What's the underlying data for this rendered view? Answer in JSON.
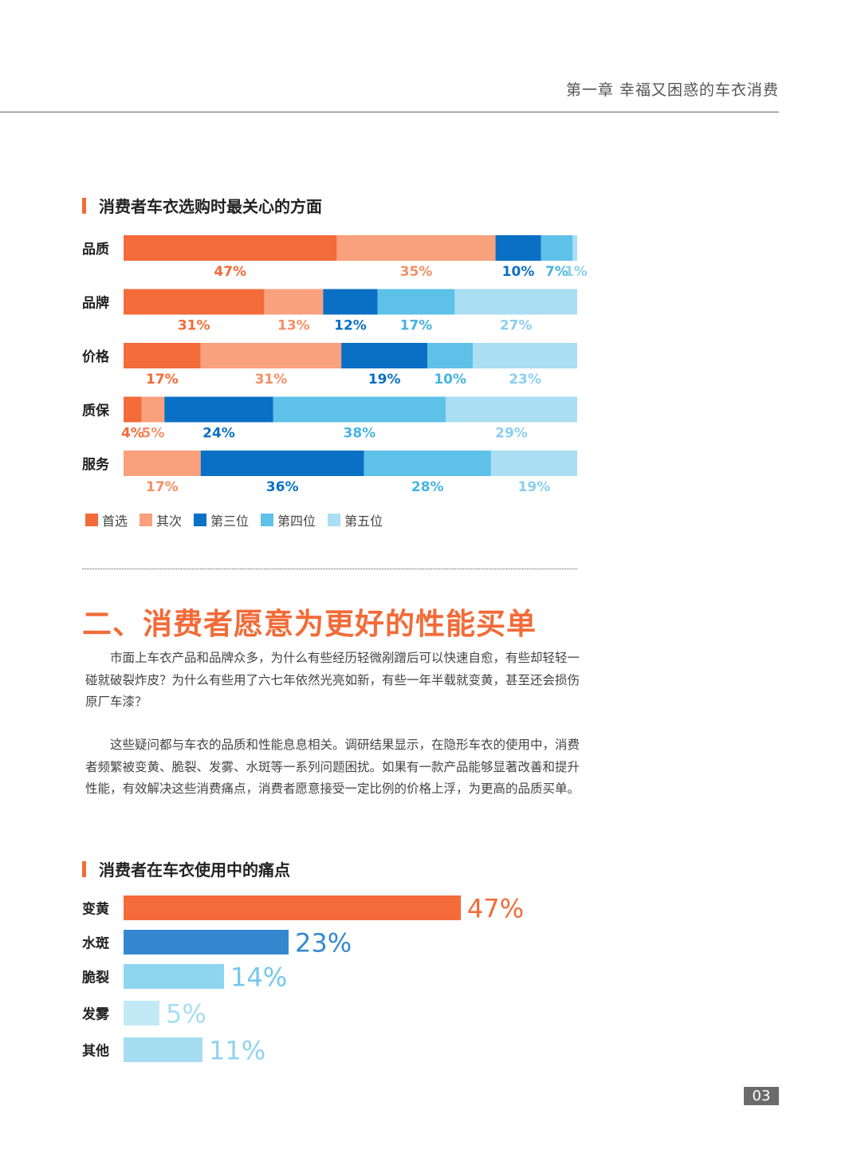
{
  "header": {
    "chapter_title": "第一章  幸福又困惑的车衣消费",
    "page_number": "03"
  },
  "section1": {
    "heading": "消费者车衣选购时最关心的方面"
  },
  "section2": {
    "heading": "二、消费者愿意为更好的性能买单",
    "paragraph1": "市面上车衣产品和品牌众多，为什么有些经历轻微剐蹭后可以快速自愈，有些却轻轻一碰就破裂炸皮？为什么有些用了六七年依然光亮如新，有些一年半载就变黄，甚至还会损伤原厂车漆？",
    "paragraph2": "这些疑问都与车衣的品质和性能息息相关。调研结果显示，在隐形车衣的使用中，消费者频繁被变黄、脆裂、发雾、水斑等一系列问题困扰。如果有一款产品能够显著改善和提升性能，有效解决这些消费痛点，消费者愿意接受一定比例的价格上浮，为更高的品质买单。"
  },
  "section3": {
    "heading": "消费者在车衣使用中的痛点"
  },
  "chart_data": [
    {
      "type": "bar",
      "stacked": true,
      "orientation": "horizontal",
      "unit": "%",
      "categories": [
        "品质",
        "品牌",
        "价格",
        "质保",
        "服务"
      ],
      "series": [
        {
          "name": "首选",
          "color": "#f26b38",
          "label_color": "#f26b38",
          "values": [
            47,
            31,
            17,
            4,
            0
          ]
        },
        {
          "name": "其次",
          "color": "#f9a07d",
          "label_color": "#f58f65",
          "values": [
            35,
            13,
            31,
            5,
            17
          ]
        },
        {
          "name": "第三位",
          "color": "#0a70c4",
          "label_color": "#0a70c4",
          "values": [
            10,
            12,
            19,
            24,
            36
          ]
        },
        {
          "name": "第四位",
          "color": "#5ec1e8",
          "label_color": "#47b4e0",
          "values": [
            7,
            17,
            10,
            38,
            28
          ]
        },
        {
          "name": "第五位",
          "color": "#a9def3",
          "label_color": "#8ccfee",
          "values": [
            1,
            27,
            23,
            29,
            19
          ]
        }
      ],
      "legend": "bottom-left"
    },
    {
      "type": "bar",
      "orientation": "horizontal",
      "unit": "%",
      "categories": [
        "变黄",
        "水斑",
        "脆裂",
        "发雾",
        "其他"
      ],
      "values": [
        47,
        23,
        14,
        5,
        11
      ],
      "colors": [
        "#f26b38",
        "#3588d0",
        "#8ed5ef",
        "#c3e9f6",
        "#a6dcf2"
      ],
      "label_colors": [
        "#f26b38",
        "#3588d0",
        "#74c8ec",
        "#a5def3",
        "#8fd3f0"
      ]
    }
  ]
}
